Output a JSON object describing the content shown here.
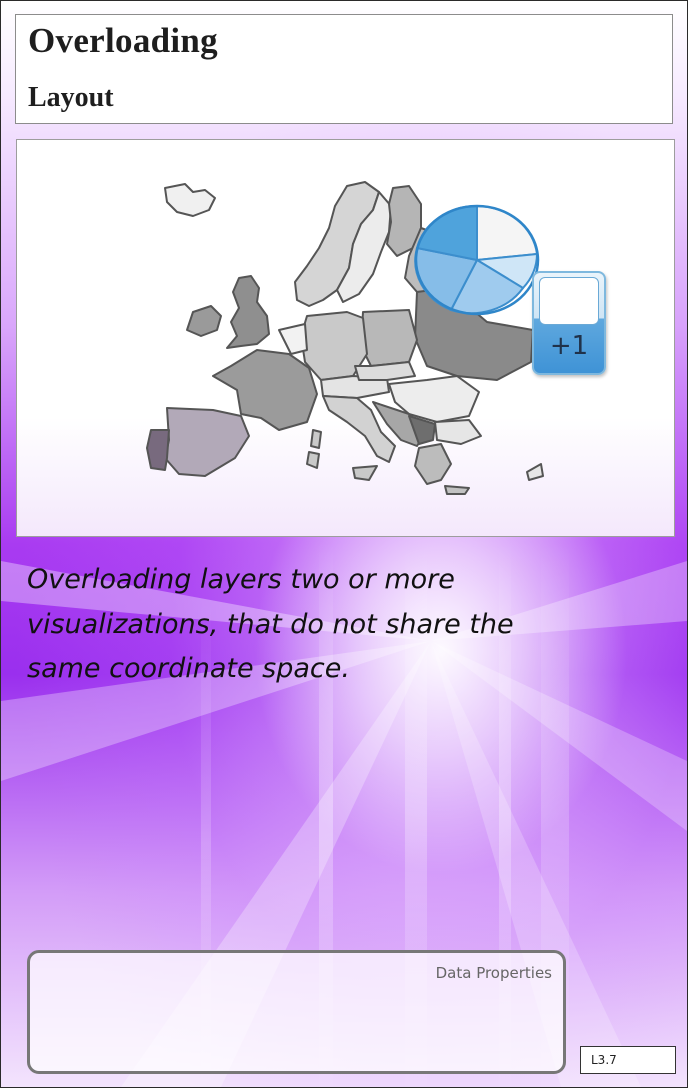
{
  "header": {
    "title": "Overloading",
    "subtitle": "Layout"
  },
  "figure": {
    "map_icon": "europe-map",
    "chart_icon": "pie-chart",
    "plus_badge": {
      "label": "+1",
      "color": "#4a9be0"
    }
  },
  "description": "Overloading layers two or more visualizations, that do not share the same coordinate space.",
  "footer": {
    "data_properties_label": "Data Properties",
    "code": "L3.7"
  },
  "colors": {
    "accent_purple": "#a93bf1",
    "pie_blue": "#4fa3dc"
  }
}
